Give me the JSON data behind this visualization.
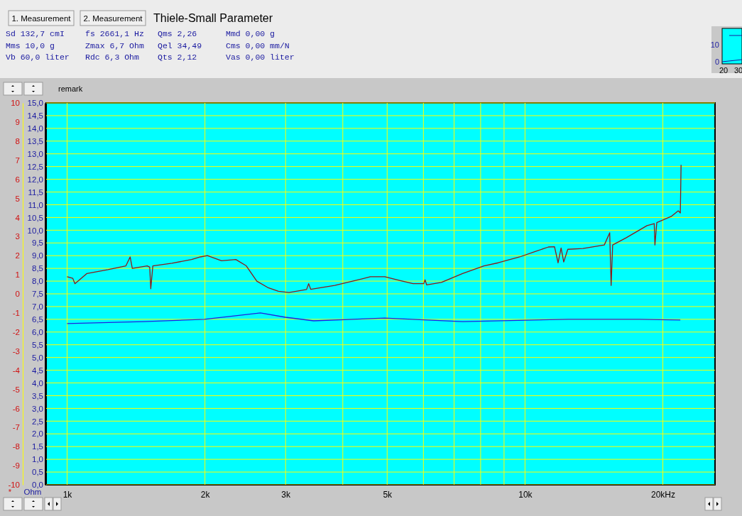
{
  "chart_data": {
    "type": "line",
    "ylabel": "Ohm",
    "y2label": "*",
    "annotations": [
      "1. Measurement",
      "2. Measurement",
      "Thiele-Small Parameter",
      "Sd 132,7 cmI",
      "Mms 10,0 g",
      "Vb 60,0 liter",
      "fs 2661,1 Hz",
      "Zmax 6,7 Ohm",
      "Rdc 6,3 Ohm",
      "Qms 2,26",
      "Qel 34,49",
      "Qts 2,12",
      "Mmd 0,00 g",
      "Cms 0,00 mm/N",
      "Vas 0,00 liter",
      "remark",
      "10",
      "0",
      "20",
      "30"
    ],
    "log": "x",
    "grid": true,
    "line_style": "solid",
    "xlim": [
      0.9,
      26
    ],
    "xticks": [
      {
        "value": 1,
        "label": "1k"
      },
      {
        "value": 2,
        "label": "2k"
      },
      {
        "value": 3,
        "label": "3k"
      },
      {
        "value": 4,
        "label": null
      },
      {
        "value": 5,
        "label": "5k"
      },
      {
        "value": 6,
        "label": null
      },
      {
        "value": 7,
        "label": null
      },
      {
        "value": 8,
        "label": null
      },
      {
        "value": 9,
        "label": null
      },
      {
        "value": 10,
        "label": "10k"
      },
      {
        "value": 20,
        "label": "20kHz"
      }
    ],
    "ylim": [
      0,
      15
    ],
    "yticks": [
      {
        "value": 0,
        "label": "0,0"
      },
      {
        "value": 0.5,
        "label": "0,5"
      },
      {
        "value": 1,
        "label": "1,0"
      },
      {
        "value": 1.5,
        "label": "1,5"
      },
      {
        "value": 2,
        "label": "2,0"
      },
      {
        "value": 2.5,
        "label": "2,5"
      },
      {
        "value": 3,
        "label": "3,0"
      },
      {
        "value": 3.5,
        "label": "3,5"
      },
      {
        "value": 4,
        "label": "4,0"
      },
      {
        "value": 4.5,
        "label": "4,5"
      },
      {
        "value": 5,
        "label": "5,0"
      },
      {
        "value": 5.5,
        "label": "5,5"
      },
      {
        "value": 6,
        "label": "6,0"
      },
      {
        "value": 6.5,
        "label": "6,5"
      },
      {
        "value": 7,
        "label": "7,0"
      },
      {
        "value": 7.5,
        "label": "7,5"
      },
      {
        "value": 8,
        "label": "8,0"
      },
      {
        "value": 8.5,
        "label": "8,5"
      },
      {
        "value": 9,
        "label": "9,0"
      },
      {
        "value": 9.5,
        "label": "9,5"
      },
      {
        "value": 10,
        "label": "10,0"
      },
      {
        "value": 10.5,
        "label": "10,5"
      },
      {
        "value": 11,
        "label": "11,0"
      },
      {
        "value": 11.5,
        "label": "11,5"
      },
      {
        "value": 12,
        "label": "12,0"
      },
      {
        "value": 12.5,
        "label": "12,5"
      },
      {
        "value": 13,
        "label": "13,0"
      },
      {
        "value": 13.5,
        "label": "13,5"
      },
      {
        "value": 14,
        "label": "14,0"
      },
      {
        "value": 14.5,
        "label": "14,5"
      },
      {
        "value": 15,
        "label": "15,0"
      }
    ],
    "y2lim": [
      -10,
      10
    ],
    "y2ticks": [
      -10,
      -9,
      -8,
      -7,
      -6,
      -5,
      -4,
      -3,
      -2,
      -1,
      0,
      1,
      2,
      3,
      4,
      5,
      6,
      7,
      8,
      9,
      10
    ],
    "series": [
      {
        "color": "#8b1a1a",
        "x": [
          1.0,
          1.029,
          1.04,
          1.105,
          1.229,
          1.344,
          1.373,
          1.388,
          1.496,
          1.515,
          1.523,
          1.539,
          1.694,
          1.87,
          1.954,
          2.025,
          2.174,
          2.336,
          2.462,
          2.596,
          2.742,
          2.894,
          3.051,
          3.334,
          3.369,
          3.404,
          3.841,
          4.28,
          4.596,
          4.94,
          5.303,
          5.694,
          6.009,
          6.05,
          6.1,
          6.567,
          7.306,
          8.136,
          8.742,
          9.737,
          10.47,
          11.25,
          11.6,
          11.81,
          11.99,
          12.15,
          12.4,
          13.38,
          14.9,
          15.31,
          15.42,
          15.54,
          16.62,
          18.47,
          19.15,
          19.22,
          19.4,
          20.86,
          21.61,
          21.84,
          21.92
        ],
        "values": [
          8.17,
          8.11,
          7.9,
          8.3,
          8.45,
          8.6,
          8.95,
          8.5,
          8.6,
          8.55,
          7.7,
          8.6,
          8.7,
          8.85,
          8.95,
          9.0,
          8.8,
          8.85,
          8.6,
          8.0,
          7.75,
          7.6,
          7.55,
          7.67,
          7.9,
          7.68,
          7.83,
          8.03,
          8.17,
          8.17,
          8.03,
          7.9,
          7.9,
          8.05,
          7.85,
          7.95,
          8.3,
          8.6,
          8.72,
          8.95,
          9.15,
          9.34,
          9.35,
          8.72,
          9.3,
          8.75,
          9.25,
          9.28,
          9.42,
          9.9,
          7.83,
          9.42,
          9.7,
          10.18,
          10.26,
          9.42,
          10.3,
          10.54,
          10.76,
          10.68,
          12.57
        ]
      },
      {
        "color": "#2020e0",
        "x": [
          1.0,
          1.469,
          1.996,
          2.644,
          2.998,
          3.455,
          4.94,
          7.306,
          12.44,
          17.77,
          21.84
        ],
        "values": [
          6.33,
          6.41,
          6.5,
          6.75,
          6.58,
          6.44,
          6.55,
          6.41,
          6.5,
          6.5,
          6.47
        ]
      }
    ]
  }
}
